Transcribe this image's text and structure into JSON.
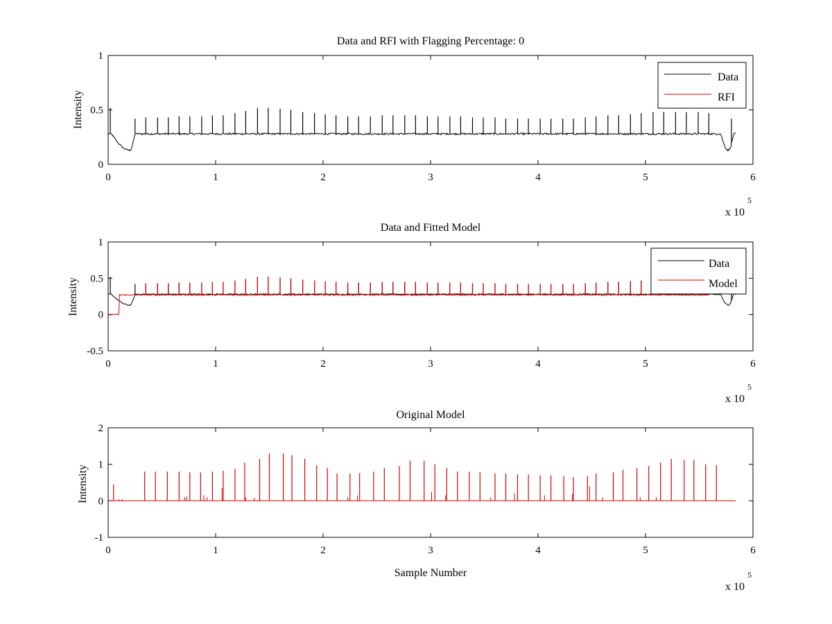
{
  "chart_data": [
    {
      "type": "line",
      "title": "Data and RFI with Flagging Percentage: 0",
      "xlabel": "",
      "ylabel": "Intensity",
      "xlim": [
        0,
        6
      ],
      "ylim": [
        0,
        1
      ],
      "x_multiplier": "x 10",
      "x_multiplier_exponent": "5",
      "xticks": [
        "0",
        "1",
        "2",
        "3",
        "4",
        "5",
        "6"
      ],
      "yticks": [
        "0",
        "0.5",
        "1"
      ],
      "legend": {
        "position": "top-right",
        "entries": [
          "Data",
          "RFI"
        ]
      },
      "grid": false,
      "series": [
        {
          "name": "Data",
          "color": "#000000",
          "baseline": 0.28,
          "x_range": [
            0,
            5.84
          ],
          "dips": [
            {
              "x_start": 0.03,
              "x_center": 0.2,
              "x_end": 0.25,
              "min": 0.13
            },
            {
              "x_start": 5.7,
              "x_center": 5.77,
              "x_end": 5.82,
              "min": 0.13
            }
          ],
          "spike_x": [
            0.02,
            0.25,
            0.35,
            0.46,
            0.56,
            0.66,
            0.76,
            0.87,
            0.97,
            1.07,
            1.18,
            1.28,
            1.39,
            1.49,
            1.6,
            1.7,
            1.81,
            1.92,
            2.02,
            2.12,
            2.23,
            2.33,
            2.44,
            2.55,
            2.65,
            2.76,
            2.86,
            2.97,
            3.07,
            3.18,
            3.28,
            3.39,
            3.49,
            3.6,
            3.7,
            3.81,
            3.91,
            4.02,
            4.12,
            4.23,
            4.33,
            4.44,
            4.54,
            4.65,
            4.75,
            4.86,
            4.96,
            5.07,
            5.17,
            5.28,
            5.38,
            5.49,
            5.59,
            5.8
          ],
          "spike_peak": [
            0.52,
            0.42,
            0.43,
            0.43,
            0.43,
            0.44,
            0.44,
            0.44,
            0.45,
            0.45,
            0.47,
            0.49,
            0.52,
            0.52,
            0.51,
            0.5,
            0.48,
            0.47,
            0.46,
            0.45,
            0.44,
            0.44,
            0.44,
            0.45,
            0.45,
            0.45,
            0.45,
            0.44,
            0.44,
            0.44,
            0.44,
            0.43,
            0.43,
            0.43,
            0.42,
            0.42,
            0.42,
            0.42,
            0.42,
            0.42,
            0.42,
            0.43,
            0.44,
            0.45,
            0.45,
            0.46,
            0.47,
            0.48,
            0.48,
            0.48,
            0.48,
            0.48,
            0.47,
            0.42
          ]
        },
        {
          "name": "RFI",
          "color": "#d40000",
          "points": []
        }
      ]
    },
    {
      "type": "line",
      "title": "Data and Fitted Model",
      "xlabel": "",
      "ylabel": "Intensity",
      "xlim": [
        0,
        6
      ],
      "ylim": [
        -0.5,
        1
      ],
      "x_multiplier": "x 10",
      "x_multiplier_exponent": "5",
      "xticks": [
        "0",
        "1",
        "2",
        "3",
        "4",
        "5",
        "6"
      ],
      "yticks": [
        "-0.5",
        "0",
        "0.5",
        "1"
      ],
      "legend": {
        "position": "top-right",
        "entries": [
          "Data",
          "Model"
        ]
      },
      "grid": false,
      "series": [
        {
          "name": "Data",
          "color": "#000000",
          "baseline": 0.28,
          "x_range": [
            0,
            5.84
          ],
          "dips": [
            {
              "x_start": 0.03,
              "x_center": 0.2,
              "x_end": 0.25,
              "min": 0.13
            },
            {
              "x_start": 5.7,
              "x_center": 5.77,
              "x_end": 5.82,
              "min": 0.13
            }
          ],
          "spike_x": [
            0.02,
            0.25,
            0.35,
            0.46,
            0.56,
            0.66,
            0.76,
            0.87,
            0.97,
            1.07,
            1.18,
            1.28,
            1.39,
            1.49,
            1.6,
            1.7,
            1.81,
            1.92,
            2.02,
            2.12,
            2.23,
            2.33,
            2.44,
            2.55,
            2.65,
            2.76,
            2.86,
            2.97,
            3.07,
            3.18,
            3.28,
            3.39,
            3.49,
            3.6,
            3.7,
            3.81,
            3.91,
            4.02,
            4.12,
            4.23,
            4.33,
            4.44,
            4.54,
            4.65,
            4.75,
            4.86,
            4.96,
            5.07,
            5.17,
            5.28,
            5.38,
            5.49,
            5.59,
            5.8
          ],
          "spike_peak": [
            0.52,
            0.42,
            0.43,
            0.43,
            0.43,
            0.44,
            0.44,
            0.44,
            0.45,
            0.45,
            0.47,
            0.49,
            0.52,
            0.52,
            0.51,
            0.5,
            0.48,
            0.47,
            0.46,
            0.45,
            0.44,
            0.44,
            0.44,
            0.45,
            0.45,
            0.45,
            0.45,
            0.44,
            0.44,
            0.44,
            0.44,
            0.43,
            0.43,
            0.43,
            0.42,
            0.42,
            0.42,
            0.42,
            0.42,
            0.42,
            0.42,
            0.43,
            0.44,
            0.45,
            0.45,
            0.46,
            0.47,
            0.48,
            0.48,
            0.48,
            0.48,
            0.48,
            0.47,
            0.42
          ]
        },
        {
          "name": "Model",
          "color": "#d40000",
          "baseline": 0.27,
          "x_range": [
            0,
            5.6
          ],
          "initial_drop": {
            "x_end": 0.1,
            "value": 0.0
          },
          "spike_x": [
            0.35,
            0.46,
            0.56,
            0.66,
            0.76,
            0.87,
            0.97,
            1.07,
            1.18,
            1.28,
            1.39,
            1.49,
            1.6,
            1.7,
            1.81,
            1.92,
            2.02,
            2.12,
            2.23,
            2.33,
            2.44,
            2.55,
            2.65,
            2.76,
            2.86,
            2.97,
            3.07,
            3.18,
            3.28,
            3.39,
            3.49,
            3.6,
            3.7,
            3.81,
            3.91,
            4.02,
            4.12,
            4.23,
            4.33,
            4.44,
            4.54,
            4.65,
            4.75,
            4.86,
            4.96,
            5.07,
            5.17,
            5.28,
            5.38,
            5.49,
            5.59
          ],
          "spike_peak": [
            0.42,
            0.43,
            0.43,
            0.44,
            0.44,
            0.44,
            0.45,
            0.45,
            0.47,
            0.49,
            0.52,
            0.52,
            0.51,
            0.5,
            0.48,
            0.47,
            0.46,
            0.45,
            0.44,
            0.44,
            0.44,
            0.45,
            0.45,
            0.45,
            0.45,
            0.44,
            0.44,
            0.44,
            0.44,
            0.43,
            0.43,
            0.43,
            0.42,
            0.42,
            0.42,
            0.42,
            0.42,
            0.42,
            0.42,
            0.43,
            0.44,
            0.45,
            0.45,
            0.46,
            0.47,
            0.48,
            0.48,
            0.48,
            0.48,
            0.48,
            0.47
          ]
        }
      ]
    },
    {
      "type": "line",
      "title": "Original Model",
      "xlabel": "Sample Number",
      "ylabel": "Intensity",
      "xlim": [
        0,
        6
      ],
      "ylim": [
        -1,
        2
      ],
      "x_multiplier": "x 10",
      "x_multiplier_exponent": "5",
      "xticks": [
        "0",
        "1",
        "2",
        "3",
        "4",
        "5",
        "6"
      ],
      "yticks": [
        "-1",
        "0",
        "1",
        "2"
      ],
      "legend": null,
      "grid": false,
      "series": [
        {
          "color": "#d40000",
          "baseline": 0.0,
          "x_range": [
            0,
            5.84
          ],
          "spike_x": [
            0.05,
            0.34,
            0.44,
            0.55,
            0.66,
            0.76,
            0.86,
            0.97,
            1.07,
            1.18,
            1.27,
            1.41,
            1.5,
            1.63,
            1.71,
            1.83,
            1.94,
            2.04,
            2.13,
            2.25,
            2.34,
            2.47,
            2.57,
            2.71,
            2.81,
            2.94,
            3.04,
            3.15,
            3.25,
            3.36,
            3.46,
            3.6,
            3.7,
            3.81,
            3.91,
            4.02,
            4.12,
            4.24,
            4.33,
            4.46,
            4.54,
            4.7,
            4.79,
            4.92,
            5.03,
            5.14,
            5.24,
            5.36,
            5.45,
            5.56,
            5.66
          ],
          "spike_peak": [
            0.45,
            0.8,
            0.8,
            0.8,
            0.8,
            0.78,
            0.78,
            0.8,
            0.82,
            0.88,
            1.05,
            1.15,
            1.3,
            1.3,
            1.25,
            1.15,
            0.97,
            0.9,
            0.75,
            0.75,
            0.76,
            0.8,
            0.9,
            0.95,
            1.1,
            1.1,
            1.0,
            0.9,
            0.8,
            0.8,
            0.78,
            0.75,
            0.75,
            0.72,
            0.72,
            0.7,
            0.7,
            0.68,
            0.65,
            0.68,
            0.75,
            0.78,
            0.85,
            0.9,
            0.95,
            1.05,
            1.15,
            1.12,
            1.12,
            1.0,
            0.98
          ],
          "small_spike_x": [
            0.1,
            0.13,
            0.71,
            0.73,
            0.89,
            0.92,
            1.06,
            1.28,
            1.36,
            2.23,
            2.32,
            3.01,
            3.14,
            3.56,
            3.78,
            4.06,
            4.32,
            4.48,
            4.6,
            4.95,
            5.1
          ],
          "small_spike_peak": [
            0.05,
            0.05,
            0.1,
            0.12,
            0.15,
            0.1,
            0.35,
            0.1,
            0.08,
            0.1,
            0.15,
            0.25,
            0.15,
            0.1,
            0.2,
            0.15,
            0.2,
            0.4,
            0.1,
            0.1,
            0.1
          ]
        }
      ]
    }
  ]
}
